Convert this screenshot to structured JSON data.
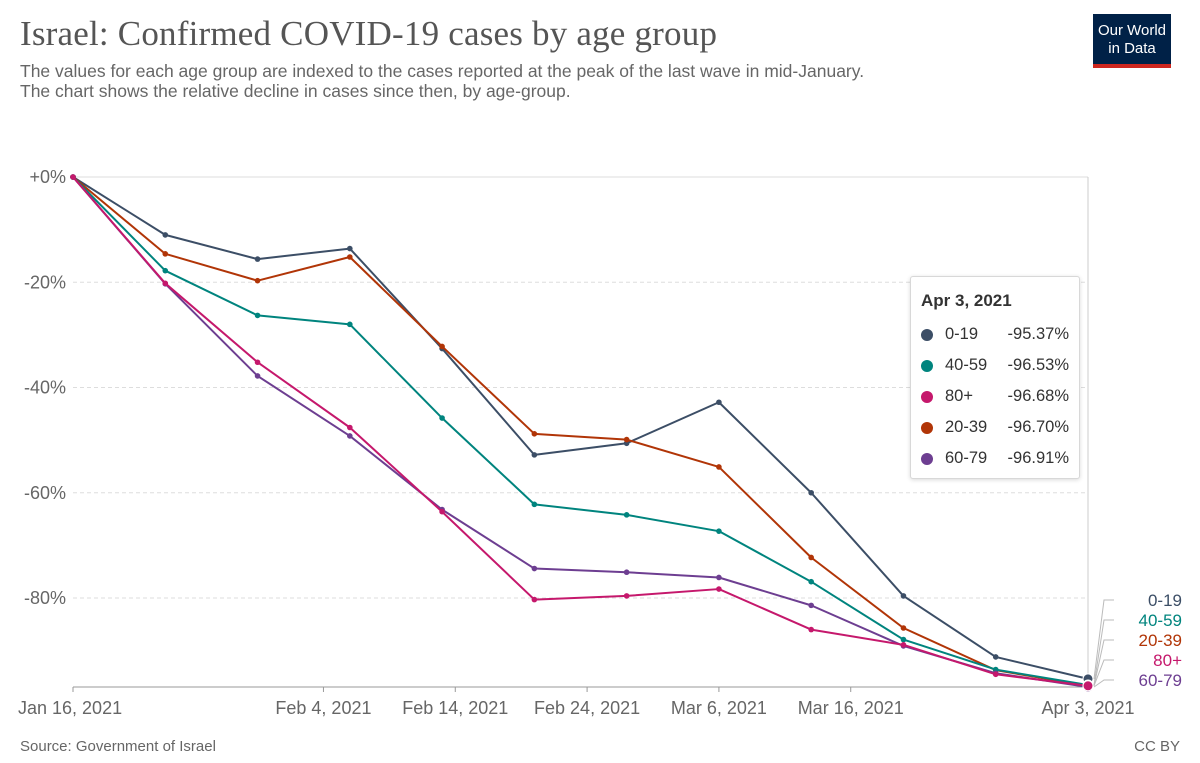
{
  "title": "Israel: Confirmed COVID-19 cases by age group",
  "subtitle_line1": "The values for each age group are indexed to the cases reported at the peak of the last wave in mid-January.",
  "subtitle_line2": "The chart shows the relative decline in cases since then, by age-group.",
  "logo": {
    "line1": "Our World",
    "line2": "in Data"
  },
  "source": "Source: Government of Israel",
  "license": "CC BY",
  "tooltip": {
    "date": "Apr 3, 2021",
    "rows": [
      {
        "name": "0-19",
        "value": "-95.37%",
        "color": "#3c4e66"
      },
      {
        "name": "40-59",
        "value": "-96.53%",
        "color": "#00847e"
      },
      {
        "name": "80+",
        "value": "-96.68%",
        "color": "#c5186c"
      },
      {
        "name": "20-39",
        "value": "-96.70%",
        "color": "#b13507"
      },
      {
        "name": "60-79",
        "value": "-96.91%",
        "color": "#6d3e91"
      }
    ]
  },
  "chart_data": {
    "type": "line",
    "title": "Israel: Confirmed COVID-19 cases by age group",
    "xlabel": "",
    "ylabel": "",
    "x_unit": "days since Jan 16, 2021",
    "xlim": [
      0,
      77
    ],
    "ylim": [
      -96.91,
      0
    ],
    "yticks": [
      {
        "value": 0,
        "label": "+0%"
      },
      {
        "value": -20,
        "label": "-20%"
      },
      {
        "value": -40,
        "label": "-40%"
      },
      {
        "value": -60,
        "label": "-60%"
      },
      {
        "value": -80,
        "label": "-80%"
      }
    ],
    "xticks": [
      {
        "value": 0,
        "label": "Jan 16, 2021"
      },
      {
        "value": 19,
        "label": "Feb 4, 2021"
      },
      {
        "value": 29,
        "label": "Feb 14, 2021"
      },
      {
        "value": 39,
        "label": "Feb 24, 2021"
      },
      {
        "value": 49,
        "label": "Mar 6, 2021"
      },
      {
        "value": 59,
        "label": "Mar 16, 2021"
      },
      {
        "value": 77,
        "label": "Apr 3, 2021"
      }
    ],
    "x": [
      0,
      7,
      14,
      21,
      28,
      35,
      42,
      49,
      56,
      63,
      70,
      77
    ],
    "series": [
      {
        "name": "0-19",
        "color": "#3c4e66",
        "values": [
          0,
          -11,
          -15.6,
          -13.6,
          -32.6,
          -52.8,
          -50.6,
          -42.8,
          -60,
          -79.6,
          -91.2,
          -95.37
        ]
      },
      {
        "name": "20-39",
        "color": "#b13507",
        "values": [
          0,
          -14.6,
          -19.7,
          -15.2,
          -32.2,
          -48.8,
          -49.9,
          -55.1,
          -72.3,
          -85.7,
          -93.7,
          -96.7
        ]
      },
      {
        "name": "40-59",
        "color": "#00847e",
        "values": [
          0,
          -17.8,
          -26.3,
          -28,
          -45.8,
          -62.2,
          -64.2,
          -67.3,
          -76.9,
          -87.9,
          -93.6,
          -96.53
        ]
      },
      {
        "name": "60-79",
        "color": "#6d3e91",
        "values": [
          0,
          -20.3,
          -37.8,
          -49.2,
          -63.2,
          -74.4,
          -75.1,
          -76.1,
          -81.4,
          -89.1,
          -94.3,
          -96.91
        ]
      },
      {
        "name": "80+",
        "color": "#c5186c",
        "values": [
          0,
          -20.2,
          -35.2,
          -47.6,
          -63.6,
          -80.3,
          -79.6,
          -78.3,
          -86,
          -88.9,
          -94.5,
          -96.68
        ]
      }
    ],
    "end_labels_order": [
      "0-19",
      "40-59",
      "20-39",
      "80+",
      "60-79"
    ]
  }
}
